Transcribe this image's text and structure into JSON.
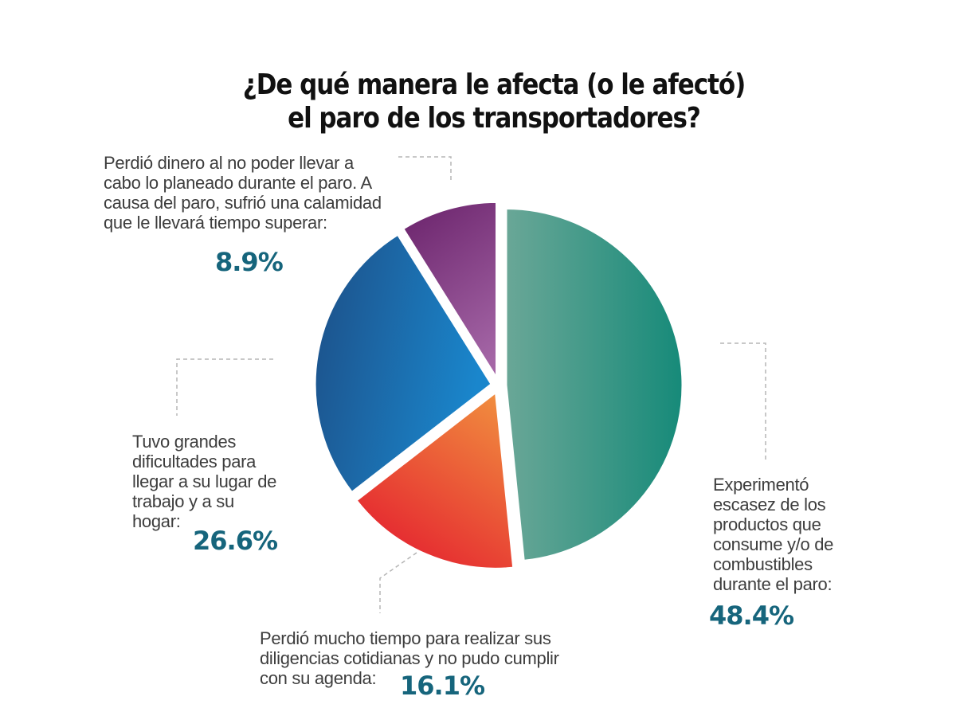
{
  "title": {
    "line1": "¿De qué manera le afecta (o le afectó)",
    "line2": "el paro de los transportadores?"
  },
  "labels": {
    "money": {
      "lines": [
        "Perdió dinero al no poder llevar a",
        "cabo lo planeado durante el paro. A",
        "causa del paro, sufrió una calamidad",
        "que le llevará tiempo superar:"
      ],
      "value": "8.9%"
    },
    "commute": {
      "lines": [
        "Tuvo grandes",
        "dificultades para",
        "llegar a su lugar de",
        "trabajo y a su",
        "hogar:"
      ],
      "value": "26.6%"
    },
    "time": {
      "lines": [
        "Perdió mucho tiempo para realizar sus",
        "diligencias cotidianas y no pudo cumplir",
        "con su agenda:"
      ],
      "value": "16.1%"
    },
    "shortage": {
      "lines": [
        "Experimentó",
        "escasez de los",
        "productos que",
        "consume y/o de",
        "combustibles",
        "durante el paro:"
      ],
      "value": "48.4%"
    }
  },
  "chart_data": {
    "type": "pie",
    "title": "¿De qué manera le afecta (o le afectó) el paro de los transportadores?",
    "start": "12 o'clock, clockwise",
    "slices": [
      {
        "key": "shortage",
        "label": "Experimentó escasez de los productos que consume y/o de combustibles durante el paro",
        "value": 48.4,
        "color_from": "#6aa797",
        "color_to": "#168a79"
      },
      {
        "key": "time",
        "label": "Perdió mucho tiempo para realizar sus diligencias cotidianas y no pudo cumplir con su agenda",
        "value": 16.1,
        "color_from": "#e41e2f",
        "color_to": "#f08a3e"
      },
      {
        "key": "commute",
        "label": "Tuvo grandes dificultades para llegar a su lugar de trabajo y a su hogar",
        "value": 26.6,
        "color_from": "#1d4e86",
        "color_to": "#1a86cc"
      },
      {
        "key": "money",
        "label": "Perdió dinero al no poder llevar a cabo lo planeado durante el paro. A causa del paro, sufrió una calamidad que le llevará tiempo superar",
        "value": 8.9,
        "color_from": "#6f2870",
        "color_to": "#a466a6"
      }
    ],
    "value_color": "#16657c",
    "leader_line_color": "#b5b5b5"
  }
}
